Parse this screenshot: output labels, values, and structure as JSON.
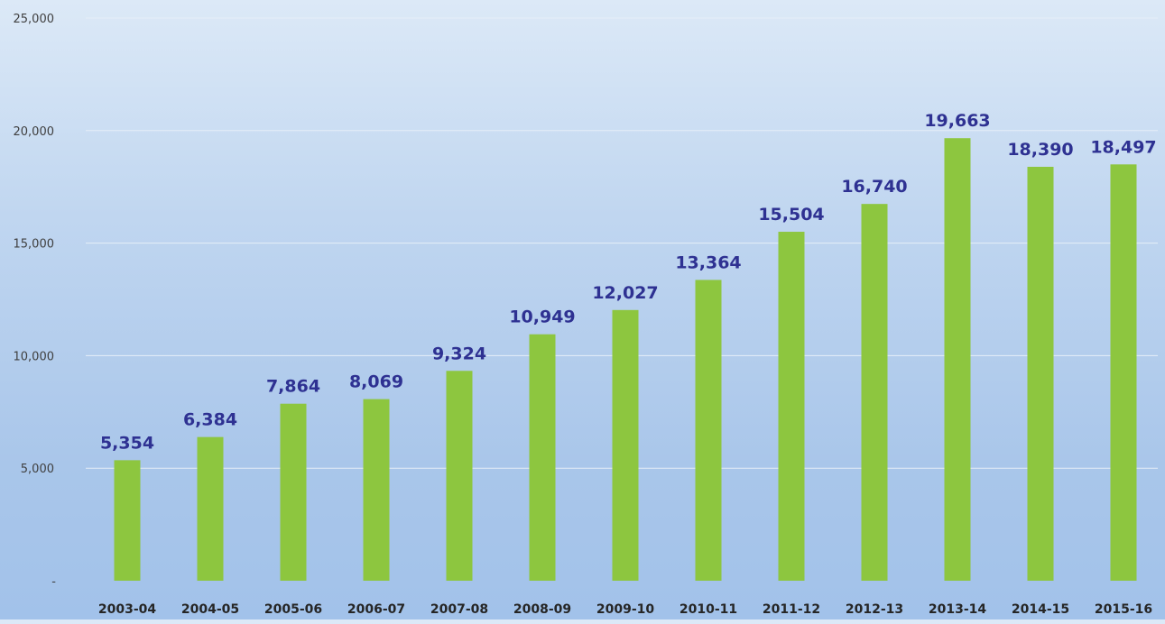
{
  "chart_data": {
    "type": "bar",
    "categories": [
      "2003-04",
      "2004-05",
      "2005-06",
      "2006-07",
      "2007-08",
      "2008-09",
      "2009-10",
      "2010-11",
      "2011-12",
      "2012-13",
      "2013-14",
      "2014-15",
      "2015-16"
    ],
    "values": [
      5354,
      6384,
      7864,
      8069,
      9324,
      10949,
      12027,
      13364,
      15504,
      16740,
      19663,
      18390,
      18497
    ],
    "data_labels": [
      "5,354",
      "6,384",
      "7,864",
      "8,069",
      "9,324",
      "10,949",
      "12,027",
      "13,364",
      "15,504",
      "16,740",
      "19,663",
      "18,390",
      "18,497"
    ],
    "yticks": [
      0,
      5000,
      10000,
      15000,
      20000,
      25000
    ],
    "ytick_labels": [
      "-",
      "5,000",
      "10,000",
      "15,000",
      "20,000",
      "25,000"
    ],
    "ylim": [
      0,
      25000
    ],
    "title": "",
    "xlabel": "",
    "ylabel": "",
    "grid": true,
    "legend": "none",
    "colors": {
      "bar": "#8dc63f",
      "data_label": "#2e3192",
      "gridline": "#e6eef8"
    }
  }
}
